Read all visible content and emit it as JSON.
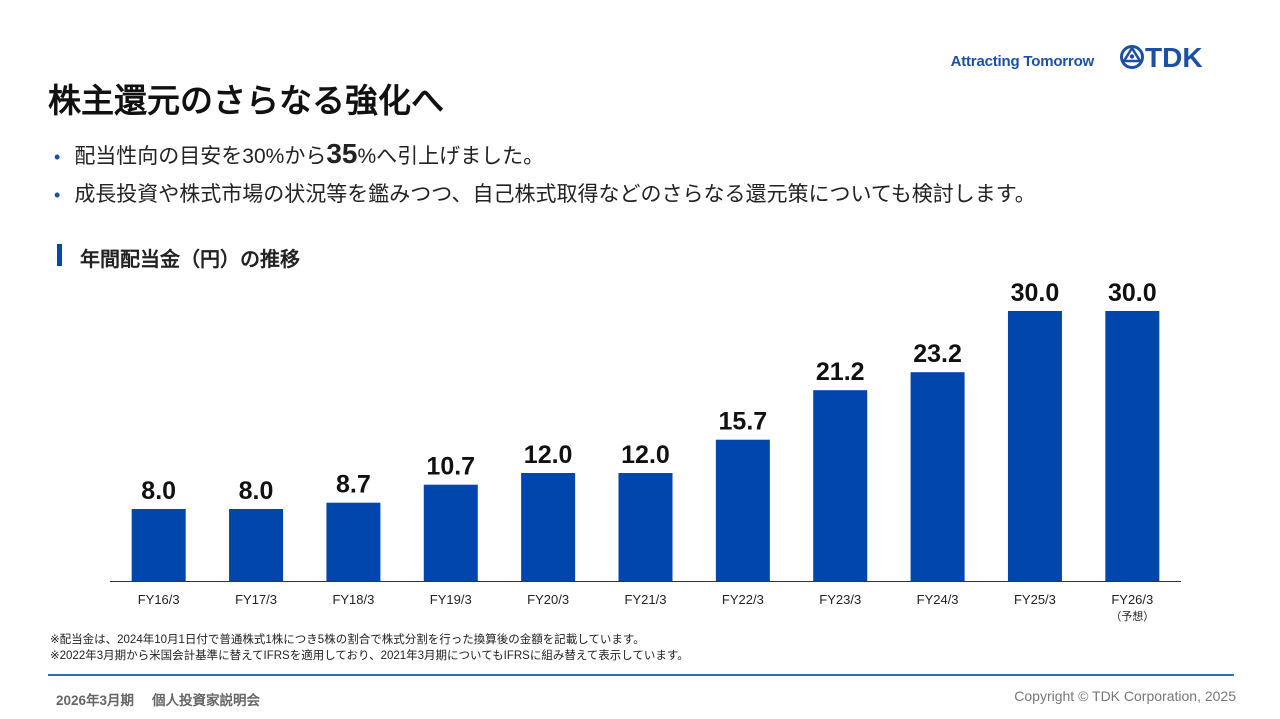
{
  "header": {
    "tagline": "Attracting Tomorrow",
    "logo_text": "TDK"
  },
  "title": "株主還元のさらなる強化へ",
  "bullets": [
    {
      "before": "配当性向の目安を30%から",
      "emph": "35",
      "after": "%へ引上げました。"
    },
    {
      "text": "成長投資や株式市場の状況等を鑑みつつ、自己株式取得などのさらなる還元策についても検討します。"
    }
  ],
  "section_title": "年間配当金（円）の推移",
  "chart_data": {
    "type": "bar",
    "categories": [
      "FY16/3",
      "FY17/3",
      "FY18/3",
      "FY19/3",
      "FY20/3",
      "FY21/3",
      "FY22/3",
      "FY23/3",
      "FY24/3",
      "FY25/3",
      "FY26/3"
    ],
    "category_sublabels": [
      "",
      "",
      "",
      "",
      "",
      "",
      "",
      "",
      "",
      "",
      "（予想）"
    ],
    "values": [
      8.0,
      8.0,
      8.7,
      10.7,
      12.0,
      12.0,
      15.7,
      21.2,
      23.2,
      30.0,
      30.0
    ],
    "value_labels": [
      "8.0",
      "8.0",
      "8.7",
      "10.7",
      "12.0",
      "12.0",
      "15.7",
      "21.2",
      "23.2",
      "30.0",
      "30.0"
    ],
    "ylim": [
      0,
      30
    ],
    "bar_color": "#0046ad",
    "grid": false,
    "title": "",
    "xlabel": "",
    "ylabel": ""
  },
  "notes": [
    "※配当金は、2024年10月1日付で普通株式1株につき5株の割合で株式分割を行った換算後の金額を記載しています。",
    "※2022年3月期から米国会計基準に替えてIFRSを適用しており、2021年3月期についてもIFRSに組み替えて表示しています。"
  ],
  "footer": {
    "period": "2026年3月期",
    "event": "個人投資家説明会",
    "copyright": "Copyright  © TDK Corporation, 2025"
  },
  "colors": {
    "brand_blue": "#1d4fa3",
    "bar": "#0046ad",
    "rule": "#2e6db4"
  }
}
